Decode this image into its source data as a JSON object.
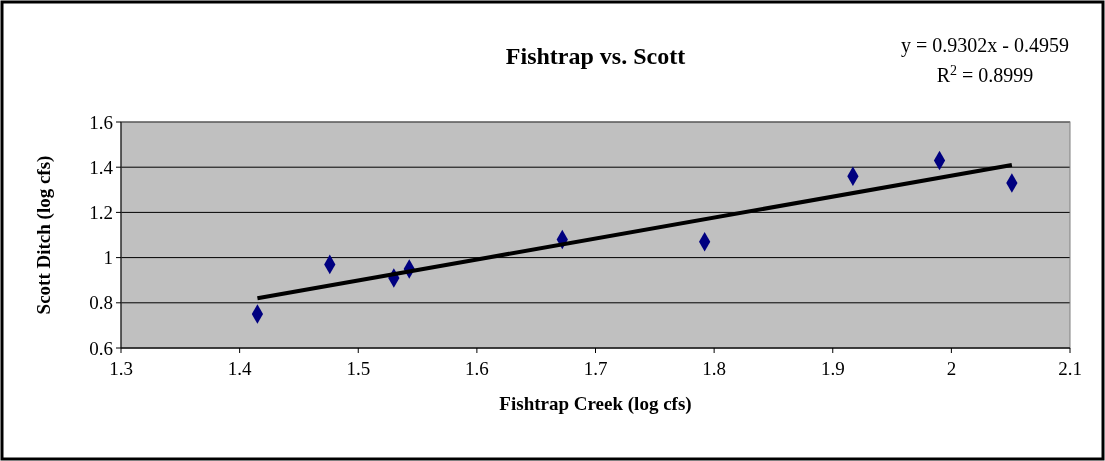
{
  "chart_data": {
    "type": "scatter",
    "title": "Fishtrap vs. Scott",
    "xlabel": "Fishtrap Creek (log cfs)",
    "ylabel": "Scott Ditch (log cfs)",
    "annotations": [
      "y = 0.9302x - 0.4959",
      "R$^{2}$ = 0.8999"
    ],
    "xlim": [
      1.3,
      2.1
    ],
    "xticks": [
      1.3,
      1.4,
      1.5,
      1.6,
      1.7,
      1.8,
      1.9,
      2,
      2.1
    ],
    "ylim": [
      0.6,
      1.6
    ],
    "yticks": [
      0.6,
      0.8,
      1,
      1.2,
      1.4,
      1.6
    ],
    "grid": "y",
    "series": [
      {
        "color": "#000080",
        "marker": "diamond",
        "x": [
          1.415,
          1.476,
          1.53,
          1.543,
          1.672,
          1.792,
          1.917,
          1.99,
          2.051
        ],
        "values": [
          0.75,
          0.97,
          0.91,
          0.95,
          1.08,
          1.07,
          1.36,
          1.43,
          1.33
        ]
      },
      {
        "type": "line",
        "color": "#000000",
        "marker": "none",
        "line_style": "solid",
        "x": [
          1.415,
          2.051
        ],
        "values": [
          0.82,
          1.41
        ]
      }
    ]
  }
}
